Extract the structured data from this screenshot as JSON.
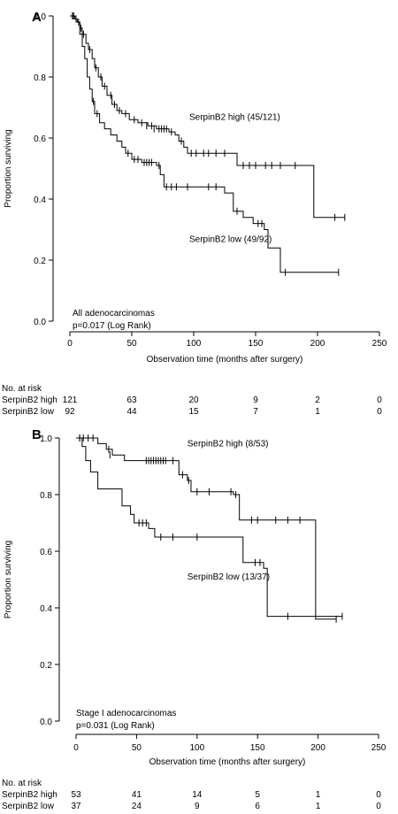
{
  "chart_data": [
    {
      "type": "line",
      "panel_label": "A",
      "xlabel": "Observation time (months after surgery)",
      "ylabel": "Proportion surviving",
      "xlim": [
        0,
        250
      ],
      "ylim": [
        0,
        1
      ],
      "x_ticks": [
        0,
        50,
        100,
        150,
        200,
        250
      ],
      "y_ticks": [
        0.0,
        0.2,
        0.4,
        0.6,
        0.8,
        1.0
      ],
      "y_tick_labels": [
        "0.0",
        "0.2",
        "0.4",
        "0.6",
        "0.8",
        "1.0"
      ],
      "grid": false,
      "annotation_lines": [
        "All adenocarcinomas",
        "p=0.017 (Log Rank)"
      ],
      "series": [
        {
          "name": "SerpinB2 high (45/121)",
          "steps": [
            [
              0,
              1.0
            ],
            [
              4,
              0.99
            ],
            [
              6,
              0.98
            ],
            [
              8,
              0.96
            ],
            [
              10,
              0.94
            ],
            [
              13,
              0.91
            ],
            [
              15,
              0.89
            ],
            [
              18,
              0.86
            ],
            [
              20,
              0.83
            ],
            [
              23,
              0.8
            ],
            [
              26,
              0.77
            ],
            [
              30,
              0.74
            ],
            [
              34,
              0.71
            ],
            [
              38,
              0.69
            ],
            [
              42,
              0.68
            ],
            [
              48,
              0.66
            ],
            [
              55,
              0.65
            ],
            [
              63,
              0.64
            ],
            [
              70,
              0.63
            ],
            [
              80,
              0.62
            ],
            [
              85,
              0.61
            ],
            [
              88,
              0.59
            ],
            [
              92,
              0.57
            ],
            [
              95,
              0.55
            ],
            [
              135,
              0.51
            ],
            [
              197,
              0.34
            ],
            [
              222,
              0.34
            ]
          ],
          "censored": [
            [
              2,
              1.0
            ],
            [
              3,
              1.0
            ],
            [
              5,
              0.99
            ],
            [
              9,
              0.96
            ],
            [
              11,
              0.94
            ],
            [
              16,
              0.89
            ],
            [
              21,
              0.83
            ],
            [
              25,
              0.8
            ],
            [
              28,
              0.77
            ],
            [
              33,
              0.74
            ],
            [
              36,
              0.71
            ],
            [
              40,
              0.69
            ],
            [
              45,
              0.68
            ],
            [
              52,
              0.66
            ],
            [
              58,
              0.65
            ],
            [
              62,
              0.64
            ],
            [
              66,
              0.64
            ],
            [
              68,
              0.63
            ],
            [
              72,
              0.63
            ],
            [
              74,
              0.63
            ],
            [
              76,
              0.63
            ],
            [
              78,
              0.63
            ],
            [
              82,
              0.62
            ],
            [
              90,
              0.59
            ],
            [
              98,
              0.55
            ],
            [
              102,
              0.55
            ],
            [
              108,
              0.55
            ],
            [
              112,
              0.55
            ],
            [
              118,
              0.55
            ],
            [
              125,
              0.55
            ],
            [
              140,
              0.51
            ],
            [
              145,
              0.51
            ],
            [
              150,
              0.51
            ],
            [
              158,
              0.51
            ],
            [
              163,
              0.51
            ],
            [
              170,
              0.51
            ],
            [
              182,
              0.51
            ],
            [
              214,
              0.34
            ],
            [
              222,
              0.34
            ]
          ],
          "label_x": 75,
          "label_y": 0.66
        },
        {
          "name": "SerpinB2 low (49/92)",
          "steps": [
            [
              0,
              1.0
            ],
            [
              5,
              0.98
            ],
            [
              8,
              0.94
            ],
            [
              10,
              0.9
            ],
            [
              12,
              0.86
            ],
            [
              14,
              0.8
            ],
            [
              16,
              0.76
            ],
            [
              18,
              0.72
            ],
            [
              20,
              0.68
            ],
            [
              24,
              0.65
            ],
            [
              28,
              0.63
            ],
            [
              33,
              0.61
            ],
            [
              38,
              0.59
            ],
            [
              42,
              0.57
            ],
            [
              45,
              0.55
            ],
            [
              50,
              0.53
            ],
            [
              58,
              0.52
            ],
            [
              70,
              0.51
            ],
            [
              73,
              0.48
            ],
            [
              76,
              0.44
            ],
            [
              125,
              0.42
            ],
            [
              132,
              0.36
            ],
            [
              140,
              0.34
            ],
            [
              148,
              0.32
            ],
            [
              157,
              0.3
            ],
            [
              160,
              0.24
            ],
            [
              170,
              0.16
            ],
            [
              217,
              0.16
            ]
          ],
          "censored": [
            [
              3,
              1.0
            ],
            [
              7,
              0.98
            ],
            [
              19,
              0.72
            ],
            [
              22,
              0.68
            ],
            [
              47,
              0.55
            ],
            [
              52,
              0.53
            ],
            [
              55,
              0.53
            ],
            [
              60,
              0.52
            ],
            [
              62,
              0.52
            ],
            [
              64,
              0.52
            ],
            [
              66,
              0.52
            ],
            [
              72,
              0.51
            ],
            [
              78,
              0.44
            ],
            [
              82,
              0.44
            ],
            [
              86,
              0.44
            ],
            [
              95,
              0.44
            ],
            [
              112,
              0.44
            ],
            [
              118,
              0.44
            ],
            [
              135,
              0.36
            ],
            [
              152,
              0.32
            ],
            [
              155,
              0.32
            ],
            [
              174,
              0.16
            ],
            [
              217,
              0.16
            ]
          ],
          "label_x": 75,
          "label_y": 0.26
        }
      ],
      "at_risk": {
        "title": "No. at risk",
        "times": [
          0,
          50,
          100,
          150,
          200,
          250
        ],
        "rows": [
          {
            "name": "SerpinB2 high",
            "counts": [
              "121",
              "63",
              "20",
              "9",
              "2",
              "0"
            ]
          },
          {
            "name": "SerpinB2 low",
            "counts": [
              "92",
              "44",
              "15",
              "7",
              "1",
              "0"
            ]
          }
        ]
      }
    },
    {
      "type": "line",
      "panel_label": "B",
      "xlabel": "Observation time (months after surgery)",
      "ylabel": "Proportion surviving",
      "xlim": [
        0,
        250
      ],
      "ylim": [
        0,
        1
      ],
      "x_ticks": [
        0,
        50,
        100,
        150,
        200,
        250
      ],
      "y_ticks": [
        0.0,
        0.2,
        0.4,
        0.6,
        0.8,
        1.0
      ],
      "y_tick_labels": [
        "0.0",
        "0.2",
        "0.4",
        "0.6",
        "0.8",
        "1.0"
      ],
      "grid": false,
      "annotation_lines": [
        "Stage I adenocarcinomas",
        "p=0.031 (Log Rank)"
      ],
      "series": [
        {
          "name": "SerpinB2 high (8/53)",
          "steps": [
            [
              0,
              1.0
            ],
            [
              18,
              0.98
            ],
            [
              25,
              0.96
            ],
            [
              30,
              0.94
            ],
            [
              40,
              0.92
            ],
            [
              85,
              0.87
            ],
            [
              92,
              0.85
            ],
            [
              95,
              0.81
            ],
            [
              130,
              0.8
            ],
            [
              135,
              0.71
            ],
            [
              198,
              0.36
            ],
            [
              215,
              0.36
            ]
          ],
          "censored": [
            [
              3,
              1.0
            ],
            [
              6,
              1.0
            ],
            [
              10,
              1.0
            ],
            [
              14,
              1.0
            ],
            [
              27,
              0.96
            ],
            [
              28,
              0.94
            ],
            [
              58,
              0.92
            ],
            [
              60,
              0.92
            ],
            [
              62,
              0.92
            ],
            [
              64,
              0.92
            ],
            [
              66,
              0.92
            ],
            [
              68,
              0.92
            ],
            [
              70,
              0.92
            ],
            [
              72,
              0.92
            ],
            [
              74,
              0.92
            ],
            [
              80,
              0.92
            ],
            [
              88,
              0.87
            ],
            [
              93,
              0.85
            ],
            [
              100,
              0.81
            ],
            [
              110,
              0.81
            ],
            [
              128,
              0.81
            ],
            [
              132,
              0.8
            ],
            [
              145,
              0.71
            ],
            [
              150,
              0.71
            ],
            [
              165,
              0.71
            ],
            [
              175,
              0.71
            ],
            [
              185,
              0.71
            ],
            [
              215,
              0.36
            ]
          ],
          "label_x": 70,
          "label_y": 0.97
        },
        {
          "name": "SerpinB2 low (13/37)",
          "steps": [
            [
              0,
              1.0
            ],
            [
              5,
              0.97
            ],
            [
              8,
              0.92
            ],
            [
              12,
              0.88
            ],
            [
              18,
              0.82
            ],
            [
              38,
              0.76
            ],
            [
              45,
              0.73
            ],
            [
              48,
              0.7
            ],
            [
              60,
              0.68
            ],
            [
              65,
              0.65
            ],
            [
              138,
              0.56
            ],
            [
              155,
              0.54
            ],
            [
              158,
              0.37
            ],
            [
              220,
              0.37
            ]
          ],
          "censored": [
            [
              3,
              1.0
            ],
            [
              52,
              0.7
            ],
            [
              55,
              0.7
            ],
            [
              58,
              0.7
            ],
            [
              70,
              0.65
            ],
            [
              80,
              0.65
            ],
            [
              100,
              0.65
            ],
            [
              148,
              0.56
            ],
            [
              152,
              0.56
            ],
            [
              175,
              0.37
            ],
            [
              220,
              0.37
            ]
          ],
          "label_x": 70,
          "label_y": 0.5
        }
      ],
      "at_risk": {
        "title": "No. at risk",
        "times": [
          0,
          50,
          100,
          150,
          200,
          250
        ],
        "rows": [
          {
            "name": "SerpinB2 high",
            "counts": [
              "53",
              "41",
              "14",
              "5",
              "1",
              "0"
            ]
          },
          {
            "name": "SerpinB2 low",
            "counts": [
              "37",
              "24",
              "9",
              "6",
              "1",
              "0"
            ]
          }
        ]
      }
    }
  ]
}
